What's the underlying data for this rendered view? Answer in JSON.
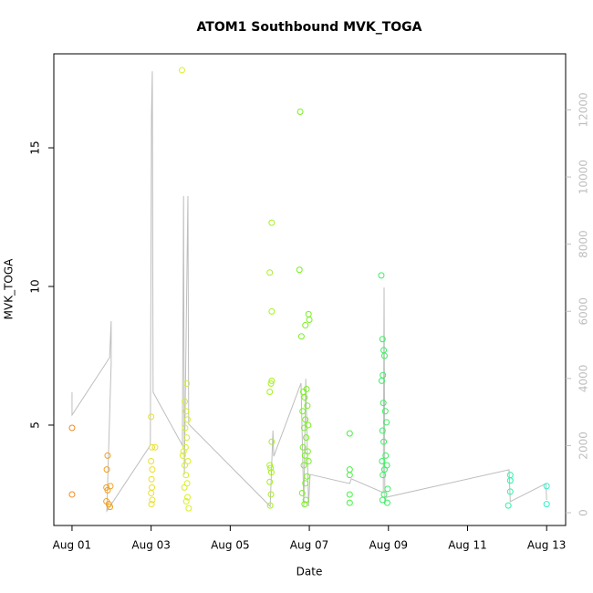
{
  "chart_data": {
    "type": "scatter",
    "title": "ATOM1 Southbound MVK_TOGA",
    "x_label": "Date",
    "y_label": "MVK_TOGA",
    "xlim": [
      -0.46,
      12.48
    ],
    "ylim": [
      1.38,
      18.39
    ],
    "y2lim": [
      -380,
      13670
    ],
    "xticks": [
      {
        "value": 0,
        "label": "Aug 01"
      },
      {
        "value": 2,
        "label": "Aug 03"
      },
      {
        "value": 4,
        "label": "Aug 05"
      },
      {
        "value": 6,
        "label": "Aug 07"
      },
      {
        "value": 8,
        "label": "Aug 09"
      },
      {
        "value": 10,
        "label": "Aug 11"
      },
      {
        "value": 12,
        "label": "Aug 13"
      }
    ],
    "yticks": [
      5,
      10,
      15
    ],
    "y2ticks": [
      0,
      2000,
      4000,
      6000,
      8000,
      10000,
      12000
    ],
    "series": [
      {
        "type": "line",
        "axis": "y2",
        "color": "#bebebe",
        "x": [
          0,
          0,
          0.95,
          0.99,
          0.99,
          0.88,
          1.98,
          2.01,
          2.03,
          2.05,
          2.79,
          2.82,
          2.84,
          2.93,
          2.95,
          5.01,
          5.08,
          5.1,
          5.79,
          5.86,
          5.91,
          5.98,
          6.02,
          7.02,
          7.06,
          7.87,
          7.89,
          7.91,
          7.94,
          11.05,
          11.08,
          11.98,
          12.0
        ],
        "values": [
          3590,
          2910,
          4620,
          5710,
          4460,
          50,
          2010,
          11870,
          13150,
          3590,
          2010,
          9430,
          1140,
          9430,
          2640,
          190,
          2450,
          1680,
          3860,
          190,
          3990,
          190,
          1140,
          870,
          1010,
          600,
          6710,
          270,
          460,
          1280,
          330,
          870,
          380
        ]
      },
      {
        "type": "scatter",
        "color": "#f08a24",
        "x": [
          0,
          0
        ],
        "values": [
          4.9,
          2.5
        ]
      },
      {
        "type": "scatter",
        "color": "#f0a020",
        "x": [
          0.9,
          0.88,
          0.87,
          0.9,
          0.97,
          0.87,
          0.93,
          0.96
        ],
        "values": [
          3.9,
          3.4,
          2.75,
          2.65,
          2.8,
          2.25,
          2.15,
          2.05
        ]
      },
      {
        "type": "scatter",
        "color": "#e8e030",
        "x": [
          2.0,
          2.1,
          2.02,
          2.0,
          2.03,
          2.01,
          2.02,
          2.0,
          2.03,
          2.01
        ],
        "values": [
          5.3,
          4.2,
          4.2,
          3.7,
          3.4,
          3.05,
          2.75,
          2.55,
          2.3,
          2.15
        ]
      },
      {
        "type": "scatter",
        "color": "#d8f020",
        "x": [
          2.78,
          2.9,
          2.85,
          2.88,
          2.92,
          2.86,
          2.9,
          2.87,
          2.82,
          2.8,
          2.93,
          2.85,
          2.88,
          2.91,
          2.84,
          2.92,
          2.89,
          2.95
        ],
        "values": [
          17.8,
          6.5,
          5.85,
          5.5,
          5.2,
          4.9,
          4.55,
          4.2,
          4.05,
          3.9,
          3.7,
          3.55,
          3.2,
          2.9,
          2.75,
          2.4,
          2.25,
          2.0
        ]
      },
      {
        "type": "scatter",
        "color": "#a8f020",
        "x": [
          5.05,
          5.0,
          5.05,
          5.05,
          5.03,
          5.0,
          5.05,
          5.0,
          5.02,
          5.04,
          5.0,
          5.03,
          5.01
        ],
        "values": [
          12.3,
          10.5,
          9.1,
          6.6,
          6.5,
          6.2,
          4.4,
          3.55,
          3.45,
          3.3,
          2.95,
          2.5,
          2.1
        ]
      },
      {
        "type": "scatter",
        "color": "#78f020",
        "x": [
          5.77,
          5.75,
          5.98,
          6.0,
          5.9,
          5.8,
          5.93,
          5.85,
          5.88,
          5.95,
          5.83,
          5.9,
          5.97,
          5.87,
          5.92,
          5.84,
          5.96,
          5.89,
          5.98,
          5.86,
          5.94,
          5.9,
          5.82,
          5.91,
          5.88
        ],
        "values": [
          16.3,
          10.6,
          9.0,
          8.8,
          8.6,
          8.2,
          6.3,
          6.2,
          6.0,
          5.7,
          5.5,
          5.2,
          5.0,
          4.9,
          4.55,
          4.2,
          4.05,
          3.9,
          3.7,
          3.55,
          3.15,
          2.9,
          2.55,
          2.3,
          2.15
        ]
      },
      {
        "type": "scatter",
        "color": "#48f040",
        "x": [
          7.02,
          7.02,
          7.02,
          7.02,
          7.02
        ],
        "values": [
          4.7,
          3.4,
          3.2,
          2.5,
          2.2
        ]
      },
      {
        "type": "scatter",
        "color": "#38f060",
        "x": [
          7.82,
          7.85,
          7.88,
          7.9,
          7.86,
          7.83,
          7.87,
          7.92,
          7.95,
          7.85,
          7.88,
          7.93,
          7.84,
          7.96,
          7.9,
          7.86,
          7.98,
          7.89,
          7.85,
          7.97
        ],
        "values": [
          10.4,
          8.1,
          7.7,
          7.5,
          6.8,
          6.6,
          5.8,
          5.5,
          5.1,
          4.8,
          4.4,
          3.9,
          3.7,
          3.55,
          3.4,
          3.2,
          2.7,
          2.5,
          2.3,
          2.2
        ]
      },
      {
        "type": "scatter",
        "color": "#30f0a8",
        "x": [
          11.08,
          11.08,
          11.08,
          11.03
        ],
        "values": [
          3.2,
          3.0,
          2.6,
          2.1
        ]
      },
      {
        "type": "scatter",
        "color": "#30f0c8",
        "x": [
          12.0,
          12.0
        ],
        "values": [
          2.8,
          2.15
        ]
      }
    ]
  }
}
